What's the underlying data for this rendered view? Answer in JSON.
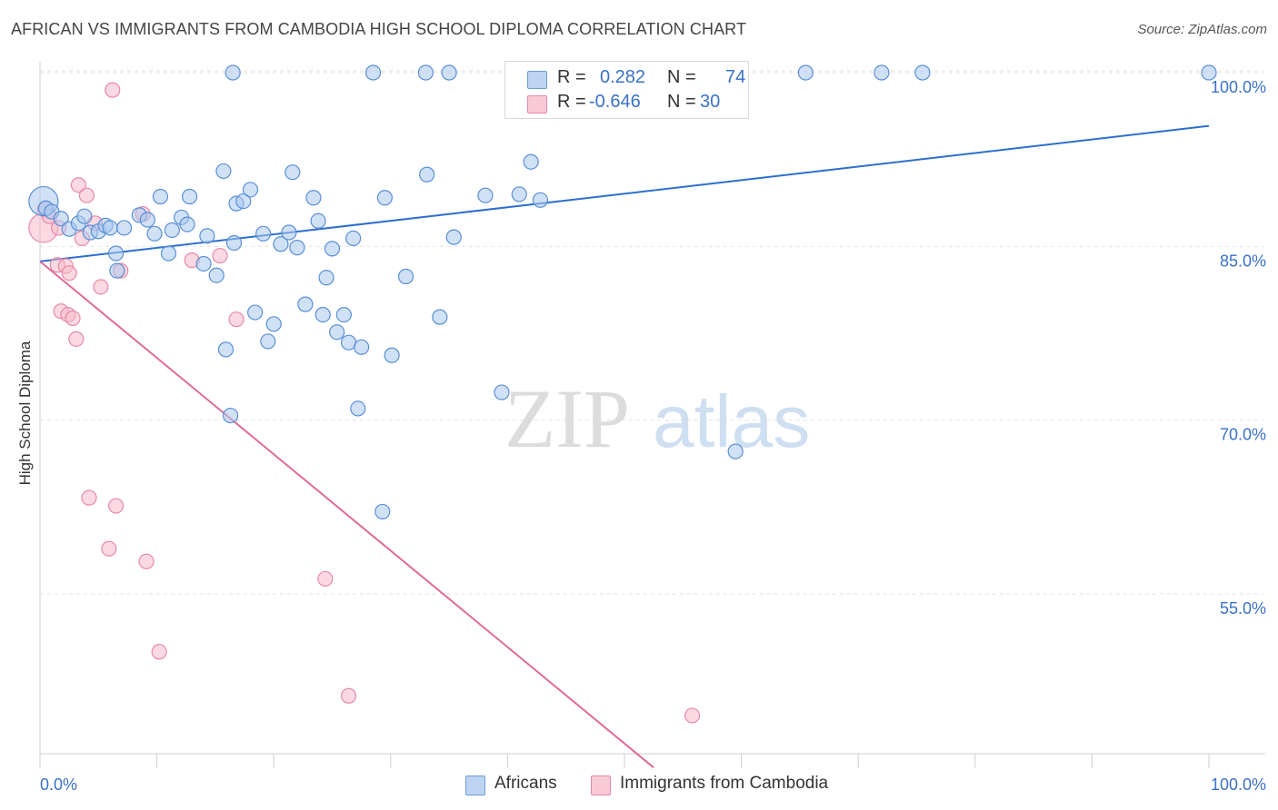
{
  "header": {
    "title": "AFRICAN VS IMMIGRANTS FROM CAMBODIA HIGH SCHOOL DIPLOMA CORRELATION CHART",
    "source": "Source: ZipAtlas.com"
  },
  "watermark": {
    "zip": "ZIP",
    "atlas": "atlas"
  },
  "legend": {
    "rows": [
      {
        "r_label": "R =",
        "r_value": "0.282",
        "n_label": "N =",
        "n_value": "74",
        "color": "#a9c8ef"
      },
      {
        "r_label": "R =",
        "r_value": "-0.646",
        "n_label": "N =",
        "n_value": "30",
        "color": "#f5b9cb"
      }
    ]
  },
  "bottom_legend": {
    "africans": "Africans",
    "cambodia": "Immigrants from Cambodia"
  },
  "colors": {
    "blue_fill": "#a9c8ef",
    "blue_stroke": "#5a8fd6",
    "blue_line": "#2c6fcf",
    "pink_fill": "#f5b9cb",
    "pink_stroke": "#e889a8",
    "pink_line": "#e06b98",
    "axis_text": "#3a72c8",
    "grid": "#e2e2e2"
  },
  "chart_data": {
    "type": "scatter",
    "title": "AFRICAN VS IMMIGRANTS FROM CAMBODIA HIGH SCHOOL DIPLOMA CORRELATION CHART",
    "xlabel": "",
    "ylabel": "High School Diploma",
    "xlim": [
      0,
      100
    ],
    "ylim": [
      40,
      101.5
    ],
    "x_tick_labels": [
      "0.0%",
      "100.0%"
    ],
    "y_ticks": [
      55,
      70,
      85,
      100
    ],
    "y_tick_labels": [
      "55.0%",
      "70.0%",
      "85.0%",
      "100.0%"
    ],
    "grid": true,
    "series": [
      {
        "name": "Africans",
        "color": "#a9c8ef",
        "trend": {
          "x": [
            0,
            100
          ],
          "y": [
            83.7,
            95.4
          ]
        },
        "points": [
          [
            0.3,
            88.9,
            1
          ],
          [
            0.5,
            88.3,
            0
          ],
          [
            1.0,
            88.0,
            0
          ],
          [
            1.8,
            87.4,
            0
          ],
          [
            2.5,
            86.5,
            0
          ],
          [
            3.3,
            87.0,
            0
          ],
          [
            3.8,
            87.6,
            0
          ],
          [
            4.3,
            86.2,
            0
          ],
          [
            5.0,
            86.3,
            0
          ],
          [
            5.6,
            86.8,
            0
          ],
          [
            6.0,
            86.6,
            0
          ],
          [
            6.5,
            84.4,
            0
          ],
          [
            6.6,
            82.9,
            0
          ],
          [
            7.2,
            86.6,
            0
          ],
          [
            8.5,
            87.7,
            0
          ],
          [
            9.2,
            87.3,
            0
          ],
          [
            9.8,
            86.1,
            0
          ],
          [
            10.3,
            89.3,
            0
          ],
          [
            11.0,
            84.4,
            0
          ],
          [
            11.3,
            86.4,
            0
          ],
          [
            12.1,
            87.5,
            0
          ],
          [
            12.6,
            86.9,
            0
          ],
          [
            12.8,
            89.3,
            0
          ],
          [
            14.0,
            83.5,
            0
          ],
          [
            14.3,
            85.9,
            0
          ],
          [
            15.1,
            82.5,
            0
          ],
          [
            15.7,
            91.5,
            0
          ],
          [
            15.9,
            76.1,
            0
          ],
          [
            16.3,
            70.4,
            0
          ],
          [
            16.6,
            85.3,
            0
          ],
          [
            16.8,
            88.7,
            0
          ],
          [
            17.4,
            88.9,
            0
          ],
          [
            18.0,
            89.9,
            0
          ],
          [
            18.4,
            79.3,
            0
          ],
          [
            19.1,
            86.1,
            0
          ],
          [
            19.5,
            76.8,
            0
          ],
          [
            20.0,
            78.3,
            0
          ],
          [
            20.6,
            85.2,
            0
          ],
          [
            21.3,
            86.2,
            0
          ],
          [
            21.6,
            91.4,
            0
          ],
          [
            22.0,
            84.9,
            0
          ],
          [
            22.7,
            80.0,
            0
          ],
          [
            23.4,
            89.2,
            0
          ],
          [
            23.8,
            87.2,
            0
          ],
          [
            24.2,
            79.1,
            0
          ],
          [
            24.5,
            82.3,
            0
          ],
          [
            25.0,
            84.8,
            0
          ],
          [
            25.4,
            77.6,
            0
          ],
          [
            26.0,
            79.1,
            0
          ],
          [
            26.4,
            76.7,
            0
          ],
          [
            26.8,
            85.7,
            0
          ],
          [
            27.2,
            71.0,
            0
          ],
          [
            27.5,
            76.3,
            0
          ],
          [
            29.3,
            62.1,
            0
          ],
          [
            29.5,
            89.2,
            0
          ],
          [
            30.1,
            75.6,
            0
          ],
          [
            31.3,
            82.4,
            0
          ],
          [
            33.1,
            91.2,
            0
          ],
          [
            34.2,
            78.9,
            0
          ],
          [
            35.4,
            85.8,
            0
          ],
          [
            38.1,
            89.4,
            0
          ],
          [
            39.5,
            72.4,
            0
          ],
          [
            41.0,
            89.5,
            0
          ],
          [
            42.0,
            92.3,
            0
          ],
          [
            42.8,
            89.0,
            0
          ],
          [
            59.5,
            67.3,
            0
          ],
          [
            16.5,
            101.0,
            0
          ],
          [
            28.5,
            101.0,
            0
          ],
          [
            33.0,
            101.0,
            0
          ],
          [
            35.0,
            101.0,
            0
          ],
          [
            65.5,
            101.0,
            0
          ],
          [
            72.0,
            101.0,
            0
          ],
          [
            75.5,
            101.0,
            0
          ],
          [
            100.0,
            101.0,
            0
          ]
        ]
      },
      {
        "name": "Immigrants from Cambodia",
        "color": "#f5b9cb",
        "trend": {
          "x": [
            0,
            52.5
          ],
          "y": [
            83.7,
            40
          ]
        },
        "points": [
          [
            0.3,
            86.6,
            1
          ],
          [
            0.4,
            88.2,
            0
          ],
          [
            0.8,
            87.6,
            0
          ],
          [
            1.6,
            86.6,
            0
          ],
          [
            1.5,
            83.4,
            0
          ],
          [
            1.8,
            79.4,
            0
          ],
          [
            2.2,
            83.3,
            0
          ],
          [
            2.4,
            79.1,
            0
          ],
          [
            2.5,
            82.7,
            0
          ],
          [
            2.8,
            78.8,
            0
          ],
          [
            3.1,
            77.0,
            0
          ],
          [
            3.3,
            90.3,
            0
          ],
          [
            3.6,
            85.7,
            0
          ],
          [
            4.0,
            89.4,
            0
          ],
          [
            4.2,
            63.3,
            0
          ],
          [
            4.7,
            87.0,
            0
          ],
          [
            5.2,
            81.5,
            0
          ],
          [
            5.9,
            58.9,
            0
          ],
          [
            6.5,
            62.6,
            0
          ],
          [
            6.9,
            82.9,
            0
          ],
          [
            6.2,
            98.5,
            0
          ],
          [
            8.8,
            87.8,
            0
          ],
          [
            9.1,
            57.8,
            0
          ],
          [
            10.2,
            50.0,
            0
          ],
          [
            13.0,
            83.8,
            0
          ],
          [
            15.4,
            84.2,
            0
          ],
          [
            16.8,
            78.7,
            0
          ],
          [
            24.4,
            56.3,
            0
          ],
          [
            26.4,
            46.2,
            0
          ],
          [
            55.8,
            44.5,
            0
          ]
        ]
      }
    ]
  }
}
